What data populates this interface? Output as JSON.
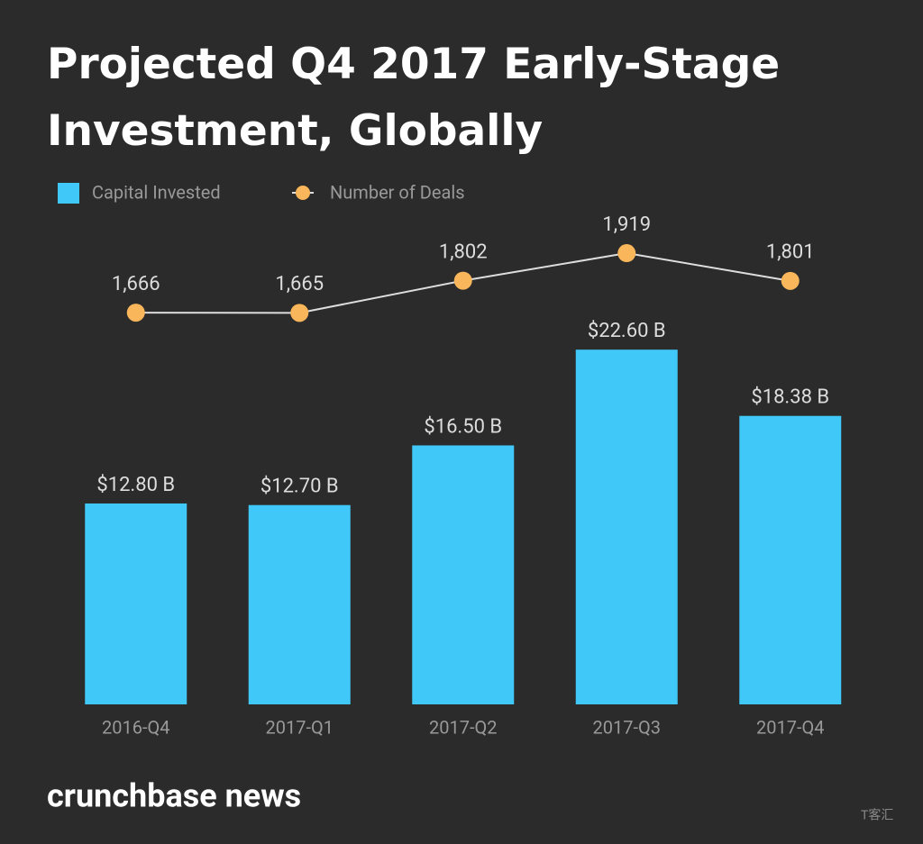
{
  "chart_data": {
    "type": "bar-line",
    "title": "Projected Q4 2017 Early-Stage Investment, Globally",
    "categories": [
      "2016-Q4",
      "2017-Q1",
      "2017-Q2",
      "2017-Q3",
      "2017-Q4"
    ],
    "series": [
      {
        "name": "Capital Invested",
        "type": "bar",
        "color": "#40c8f8",
        "values": [
          12.8,
          12.7,
          16.5,
          22.6,
          18.38
        ],
        "value_labels": [
          "$12.80 B",
          "$12.70 B",
          "$16.50 B",
          "$22.60 B",
          "$18.38 B"
        ]
      },
      {
        "name": "Number of Deals",
        "type": "line",
        "axis": "y2",
        "color": "#f9b65a",
        "values": [
          1666,
          1665,
          1802,
          1919,
          1801
        ],
        "value_labels": [
          "1,666",
          "1,665",
          "1,802",
          "1,919",
          "1,801"
        ]
      }
    ],
    "ylim": [
      0,
      40
    ],
    "y2lim": [
      0,
      2670
    ],
    "source": "crunchbase news",
    "watermark": "T客汇"
  }
}
